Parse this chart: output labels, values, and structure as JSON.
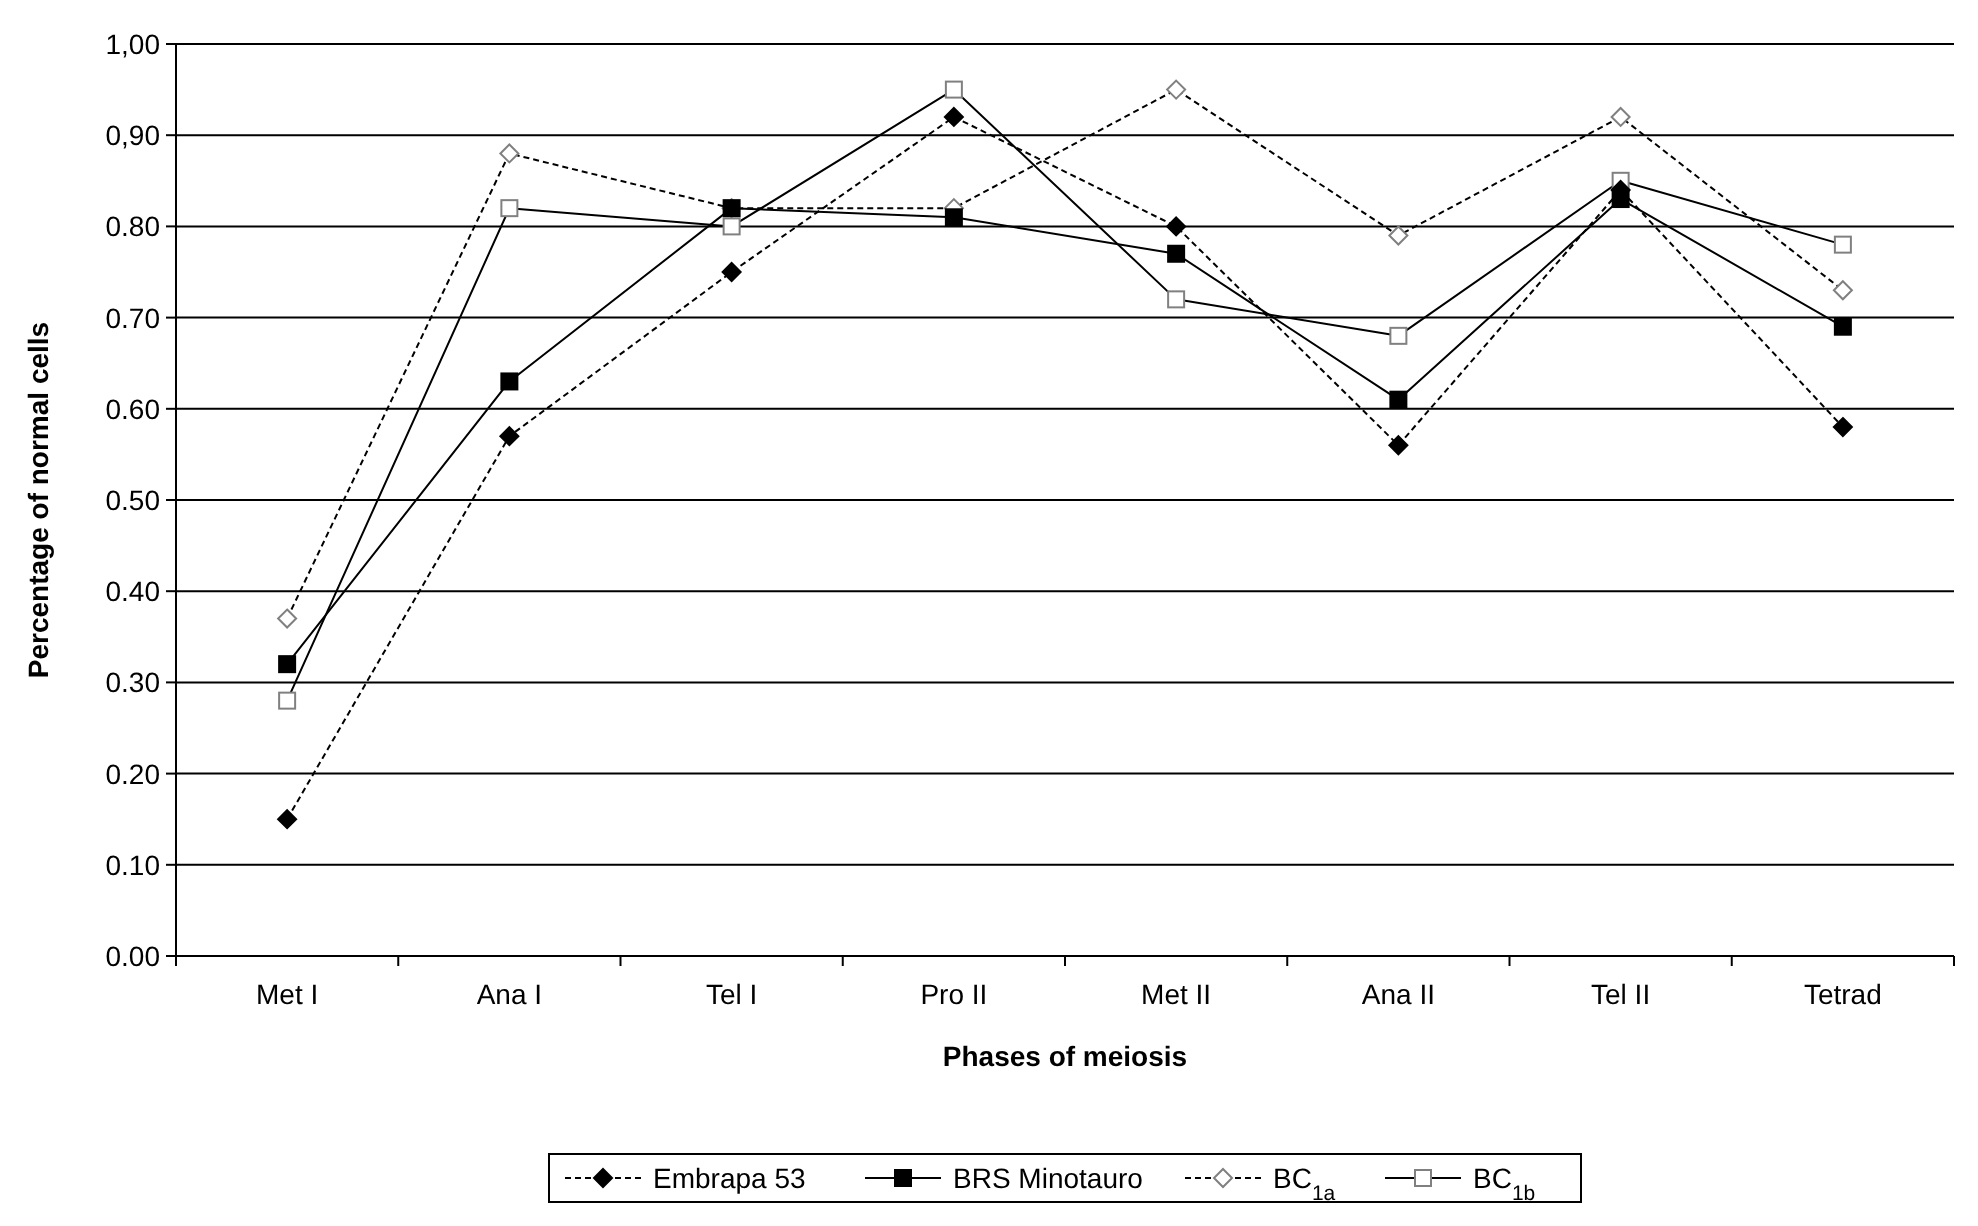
{
  "chart_data": {
    "type": "line",
    "xlabel": "Phases of meiosis",
    "ylabel": "Percentage of normal cells",
    "categories": [
      "Met I",
      "Ana I",
      "Tel I",
      "Pro II",
      "Met II",
      "Ana II",
      "Tel II",
      "Tetrad"
    ],
    "ylim": [
      0,
      1
    ],
    "yticks": [
      {
        "value": 0,
        "label": "0.00"
      },
      {
        "value": 0.1,
        "label": "0.10"
      },
      {
        "value": 0.2,
        "label": "0.20"
      },
      {
        "value": 0.3,
        "label": "0.30"
      },
      {
        "value": 0.4,
        "label": "0.40"
      },
      {
        "value": 0.5,
        "label": "0.50"
      },
      {
        "value": 0.6,
        "label": "0.60"
      },
      {
        "value": 0.7,
        "label": "0.70"
      },
      {
        "value": 0.8,
        "label": "0.80"
      },
      {
        "value": 0.9,
        "label": "0,90"
      },
      {
        "value": 1,
        "label": "1,00"
      }
    ],
    "grid": "y",
    "legend": "bottom",
    "series": [
      {
        "name": "Embrapa 53",
        "color": "#000000",
        "marker": "diamond",
        "line_style": "dashed",
        "values": [
          0.15,
          0.57,
          0.75,
          0.92,
          0.8,
          0.56,
          0.84,
          0.58
        ]
      },
      {
        "name": "BRS Minotauro",
        "color": "#000000",
        "marker": "square",
        "line_style": "solid",
        "values": [
          0.32,
          0.63,
          0.82,
          0.81,
          0.77,
          0.61,
          0.83,
          0.69
        ]
      },
      {
        "name": "BC$_{1a}$",
        "color": "#000000",
        "marker": "diamond",
        "line_style": "dashed",
        "values": [
          0.37,
          0.88,
          0.82,
          0.82,
          0.95,
          0.79,
          0.92,
          0.73
        ]
      },
      {
        "name": "BC$_{1b}$",
        "color": "#000000",
        "marker": "square",
        "line_style": "solid",
        "values": [
          0.28,
          0.82,
          0.8,
          0.95,
          0.72,
          0.68,
          0.85,
          0.78
        ]
      }
    ]
  }
}
